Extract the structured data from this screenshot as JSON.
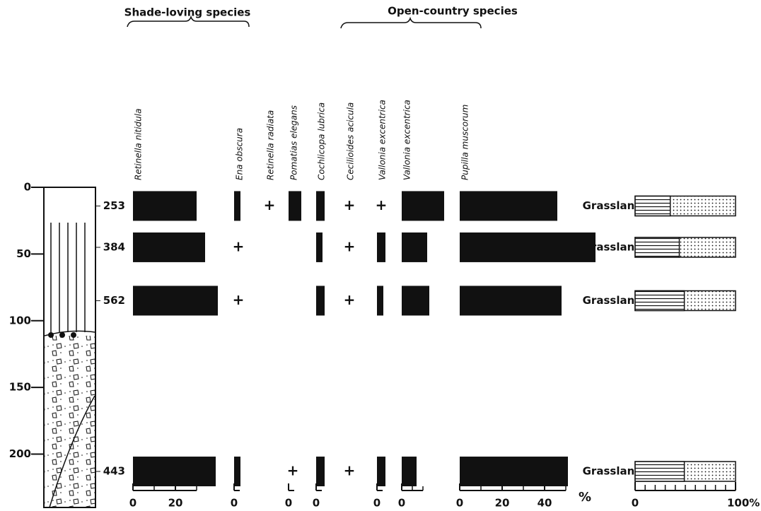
{
  "chart_data": {
    "type": "bar",
    "groups": [
      "Shade-loving species",
      "Open-country species"
    ],
    "ylim": [
      0,
      240
    ],
    "yticks": [
      0,
      50,
      100,
      150,
      200
    ],
    "samples": {
      "depth": [
        14,
        45,
        85,
        213
      ],
      "count": [
        253,
        384,
        562,
        443
      ],
      "habitat": [
        "Grassland",
        "Grassland",
        "Grassland",
        "Grassland"
      ]
    },
    "series": [
      {
        "name": "Retinella nitidula",
        "color": "#111111",
        "values": [
          30,
          34,
          40,
          39
        ],
        "xticks": [
          0,
          20
        ],
        "xminor": [
          10,
          30
        ]
      },
      {
        "name": "Ena obscura",
        "color": "#111111",
        "values": [
          3,
          null,
          null,
          3
        ],
        "value_labels": [
          null,
          "+",
          "+",
          null
        ],
        "xticks": [
          0
        ]
      },
      {
        "name": "Retinella radiata",
        "color": "#111111",
        "values": [
          null,
          null,
          null,
          null
        ],
        "value_labels": [
          "+",
          null,
          null,
          null
        ]
      },
      {
        "name": "Pomatias elegans",
        "color": "#111111",
        "values": [
          6,
          null,
          null,
          null
        ],
        "value_labels": [
          null,
          null,
          null,
          "+"
        ],
        "xticks": [
          0
        ]
      },
      {
        "name": "Cochlicopa lubrica",
        "color": "#111111",
        "values": [
          4,
          3,
          4,
          4
        ],
        "xticks": [
          0
        ]
      },
      {
        "name": "Cecilioides acicula",
        "color": "#111111",
        "values": [
          null,
          null,
          null,
          null
        ],
        "value_labels": [
          "+",
          "+",
          "+",
          "+"
        ]
      },
      {
        "name": "Vallonia excentrica",
        "color": "#111111",
        "values": [
          null,
          4,
          3,
          4
        ],
        "value_labels": [
          "+",
          null,
          null,
          null
        ],
        "xticks": [
          0
        ]
      },
      {
        "name": "Vallonia excentrica",
        "color": "#111111",
        "values": [
          20,
          12,
          13,
          7
        ],
        "xticks": [
          0
        ],
        "xminor": [
          5,
          10
        ]
      },
      {
        "name": "Pupilla muscorum",
        "color": "#111111",
        "values": [
          46,
          64,
          48,
          51
        ],
        "xticks": [
          0,
          20,
          40
        ],
        "xminor": [
          10,
          30,
          50
        ]
      }
    ],
    "percent_unit": "%",
    "composition": {
      "values": [
        35,
        44,
        49,
        49
      ],
      "xlim": [
        0,
        100
      ],
      "xticks": [
        0,
        {
          "value": 100,
          "label": "100%"
        }
      ],
      "xminor": [
        10,
        20,
        30,
        40,
        50,
        60,
        70,
        80,
        90
      ]
    }
  }
}
